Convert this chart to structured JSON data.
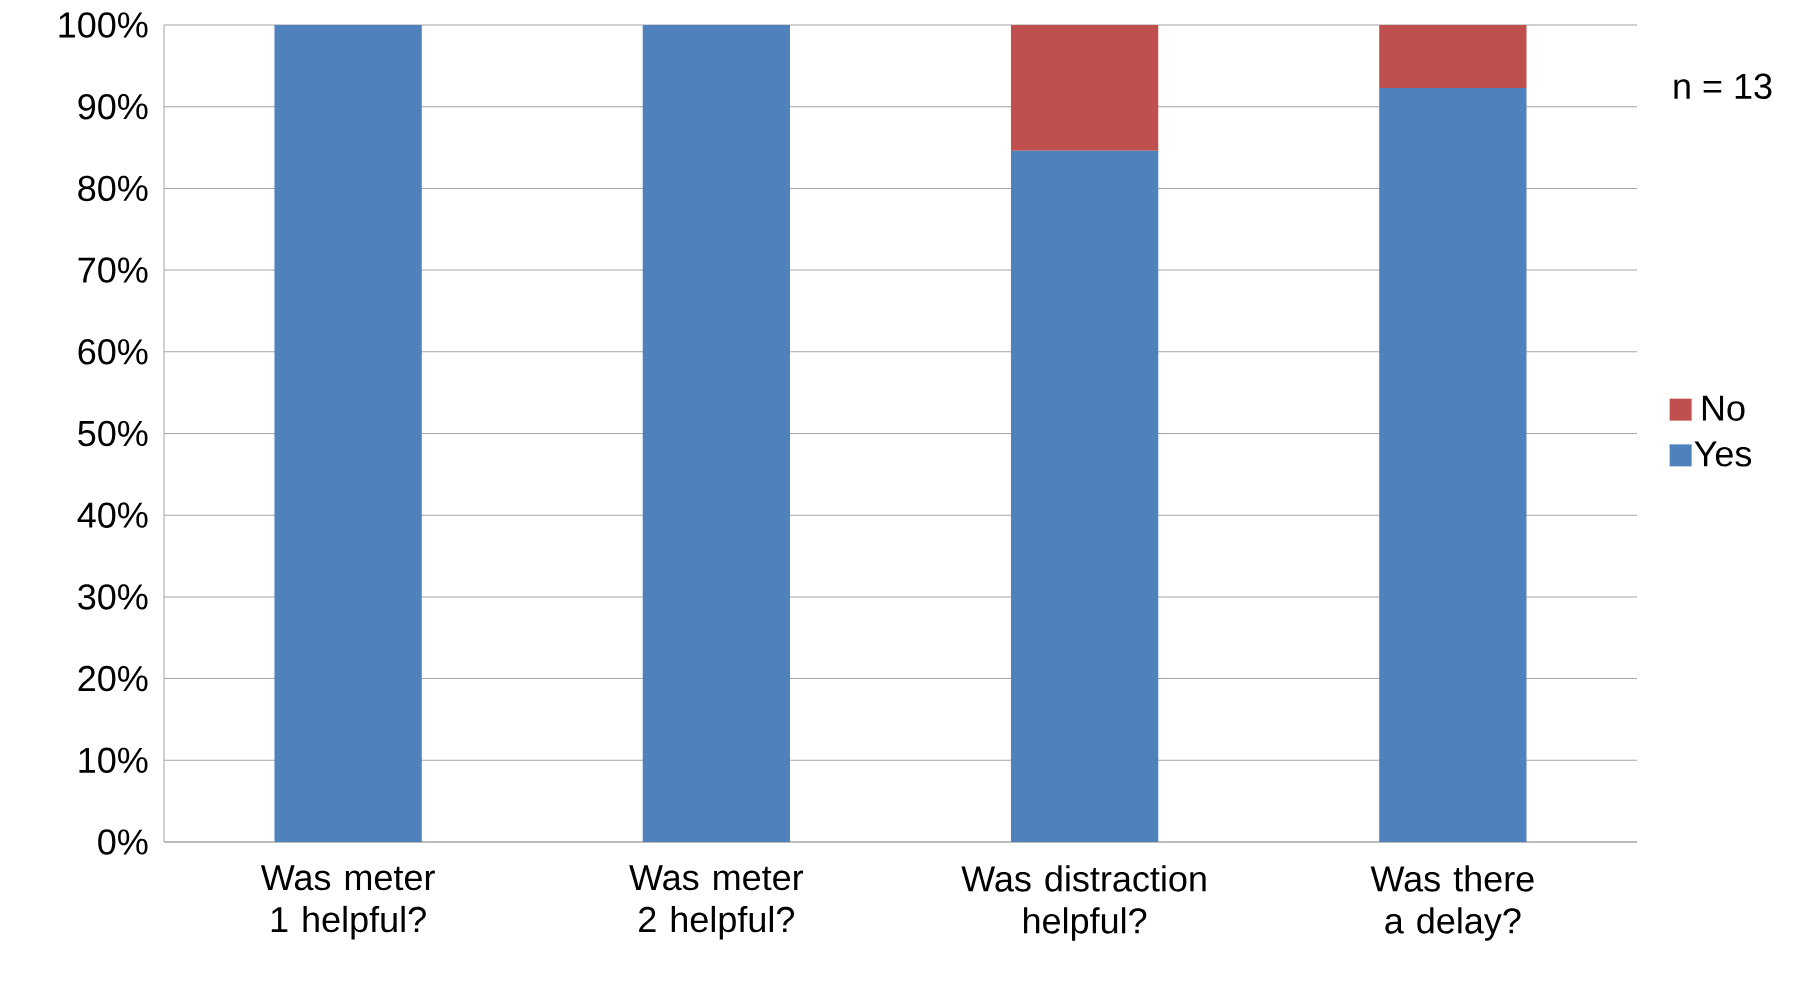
{
  "chart_data": {
    "type": "bar",
    "stacked": true,
    "categories": [
      "Was meter 1 helpful?",
      "Was meter 2 helpful?",
      "Was distraction helpful?",
      "Was there a delay?"
    ],
    "series": [
      {
        "name": "Yes",
        "color": "#4f81bd",
        "values": [
          100,
          100,
          84.6,
          92.3
        ]
      },
      {
        "name": "No",
        "color": "#c0504d",
        "values": [
          0,
          0,
          15.4,
          7.7
        ]
      }
    ],
    "ylim": [
      0,
      100
    ],
    "yticks": [
      {
        "value": 0,
        "label": "0%"
      },
      {
        "value": 10,
        "label": "10%"
      },
      {
        "value": 20,
        "label": "20%"
      },
      {
        "value": 30,
        "label": "30%"
      },
      {
        "value": 40,
        "label": "40%"
      },
      {
        "value": 50,
        "label": "50%"
      },
      {
        "value": 60,
        "label": "60%"
      },
      {
        "value": 70,
        "label": "70%"
      },
      {
        "value": 80,
        "label": "80%"
      },
      {
        "value": 90,
        "label": "90%"
      },
      {
        "value": 100,
        "label": "100%"
      }
    ],
    "grid": "y",
    "legend": "right",
    "annotations": [
      "n = 13"
    ]
  }
}
